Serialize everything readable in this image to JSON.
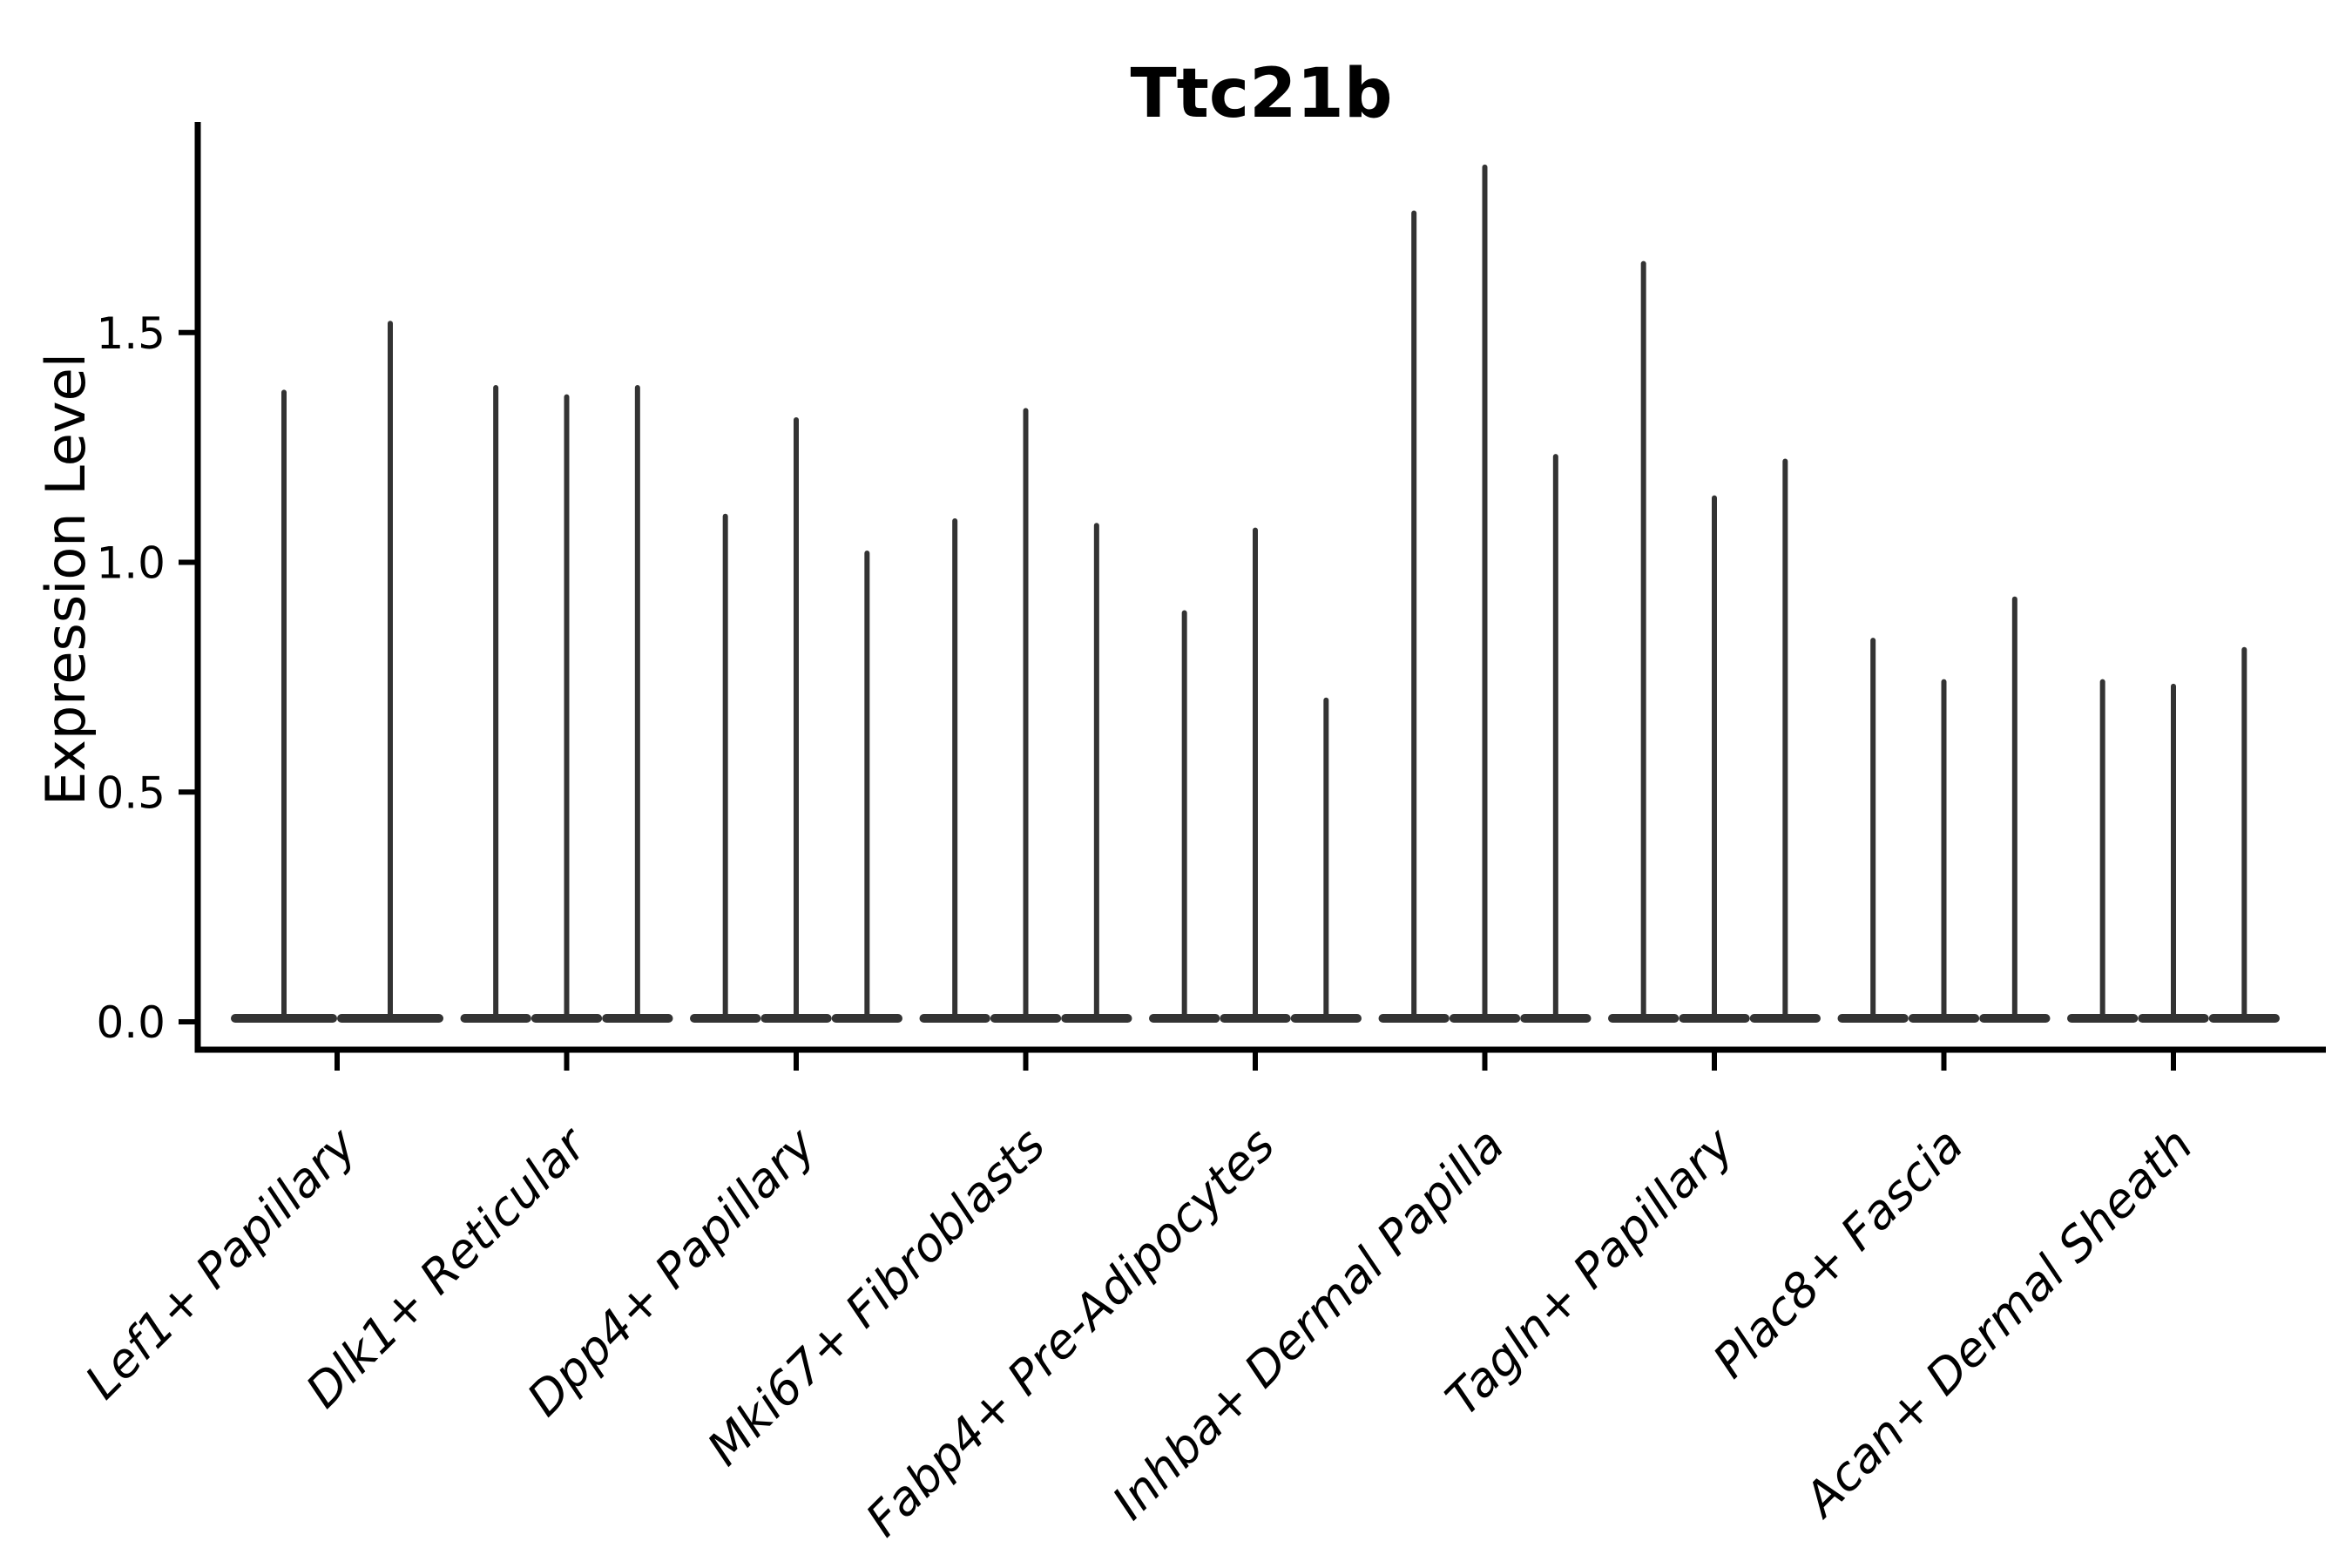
{
  "chart_data": {
    "type": "violin",
    "title": "Ttc21b",
    "ylabel": "Expression Level",
    "xlabel": "",
    "background_color": "#ffffff",
    "violin_color": "#333333",
    "axis_color": "#000000",
    "grid": false,
    "legend": "none",
    "ylim": [
      0.0,
      1.97
    ],
    "yticks": [
      {
        "label": "0.0",
        "value": 0.0
      },
      {
        "label": "0.5",
        "value": 0.5
      },
      {
        "label": "1.0",
        "value": 1.0
      },
      {
        "label": "1.5",
        "value": 1.5
      }
    ],
    "x_tick_rotation_degrees": 45,
    "groups": [
      {
        "label": "Lef1+ Papillary",
        "violin_maxima": [
          1.37,
          1.52
        ]
      },
      {
        "label": "Dlk1+ Reticular",
        "violin_maxima": [
          1.38,
          1.36,
          1.38
        ]
      },
      {
        "label": "Dpp4+ Papillary",
        "violin_maxima": [
          1.1,
          1.31,
          1.02
        ]
      },
      {
        "label": "Mki67+ Fibroblasts",
        "violin_maxima": [
          1.09,
          1.33,
          1.08
        ]
      },
      {
        "label": "Fabp4+ Pre-Adipocytes",
        "violin_maxima": [
          0.89,
          1.07,
          0.7
        ]
      },
      {
        "label": "Inhba+ Dermal Papilla",
        "violin_maxima": [
          1.76,
          1.86,
          1.23
        ]
      },
      {
        "label": "Tagln+ Papillary",
        "violin_maxima": [
          1.65,
          1.14,
          1.22
        ]
      },
      {
        "label": "Plac8+ Fascia",
        "violin_maxima": [
          0.83,
          0.74,
          0.92
        ]
      },
      {
        "label": "Acan+ Dermal Sheath",
        "violin_maxima": [
          0.74,
          0.73,
          0.81
        ]
      }
    ]
  }
}
